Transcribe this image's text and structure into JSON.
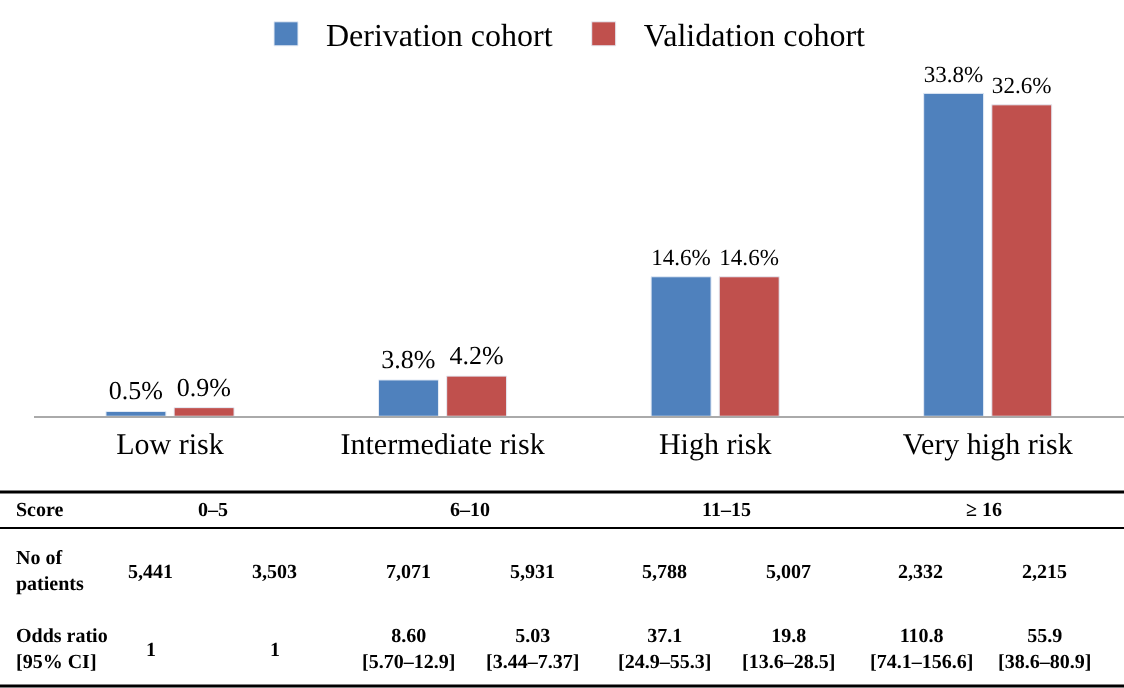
{
  "chart_data": {
    "type": "bar",
    "categories": [
      "Low risk",
      "Intermediate risk",
      "High risk",
      "Very high risk"
    ],
    "series": [
      {
        "name": "Derivation cohort",
        "color": "#4f81bd",
        "values": [
          0.5,
          3.8,
          14.6,
          33.8
        ],
        "value_labels": [
          "0.5%",
          "3.8%",
          "14.6%",
          "33.8%"
        ]
      },
      {
        "name": "Validation cohort",
        "color": "#c0504d",
        "values": [
          0.9,
          4.2,
          14.6,
          32.6
        ],
        "value_labels": [
          "0.9%",
          "4.2%",
          "14.6%",
          "32.6%"
        ]
      }
    ],
    "legend": "top",
    "annotations": [
      "Score",
      "No of\npatients",
      "Odds ratio\n[95% CI]",
      "0–5",
      "6–10",
      "11–15",
      "≥ 16",
      "5,441",
      "3,503",
      "7,071",
      "5,931",
      "5,788",
      "5,007",
      "2,332",
      "2,215",
      "1",
      "1",
      "8.60\n[5.70–12.9]",
      "5.03\n[3.44–7.37]",
      "37.1\n[24.9–55.3]",
      "19.8\n[13.6–28.5]",
      "110.8\n[74.1–156.6]",
      "55.9\n[38.6–80.9]"
    ]
  }
}
